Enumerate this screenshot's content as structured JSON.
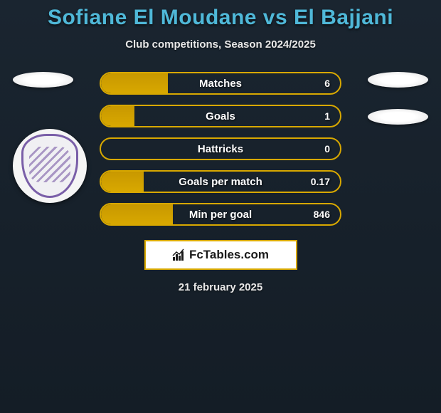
{
  "title": "Sofiane El Moudane vs El Bajjani",
  "subtitle": "Club competitions, Season 2024/2025",
  "stats": [
    {
      "label": "Matches",
      "value": "6",
      "fill_pct": 28,
      "border_color": "#d8a800",
      "fill_color": "#c89800"
    },
    {
      "label": "Goals",
      "value": "1",
      "fill_pct": 14,
      "border_color": "#d8a800",
      "fill_color": "#c89800"
    },
    {
      "label": "Hattricks",
      "value": "0",
      "fill_pct": 0,
      "border_color": "#d8a800",
      "fill_color": "#c89800"
    },
    {
      "label": "Goals per match",
      "value": "0.17",
      "fill_pct": 18,
      "border_color": "#d8a800",
      "fill_color": "#c89800"
    },
    {
      "label": "Min per goal",
      "value": "846",
      "fill_pct": 30,
      "border_color": "#d8a800",
      "fill_color": "#c89800"
    }
  ],
  "footer": {
    "logo_text": "FcTables.com",
    "date": "21 february 2025"
  },
  "colors": {
    "title_color": "#4fb8d8",
    "text_color": "#e8e8e8",
    "bar_text": "#ffffff",
    "background_top": "#1a2530",
    "background_bottom": "#141d26",
    "logo_border": "#d8a800",
    "badge_border": "#7a5fa8"
  }
}
